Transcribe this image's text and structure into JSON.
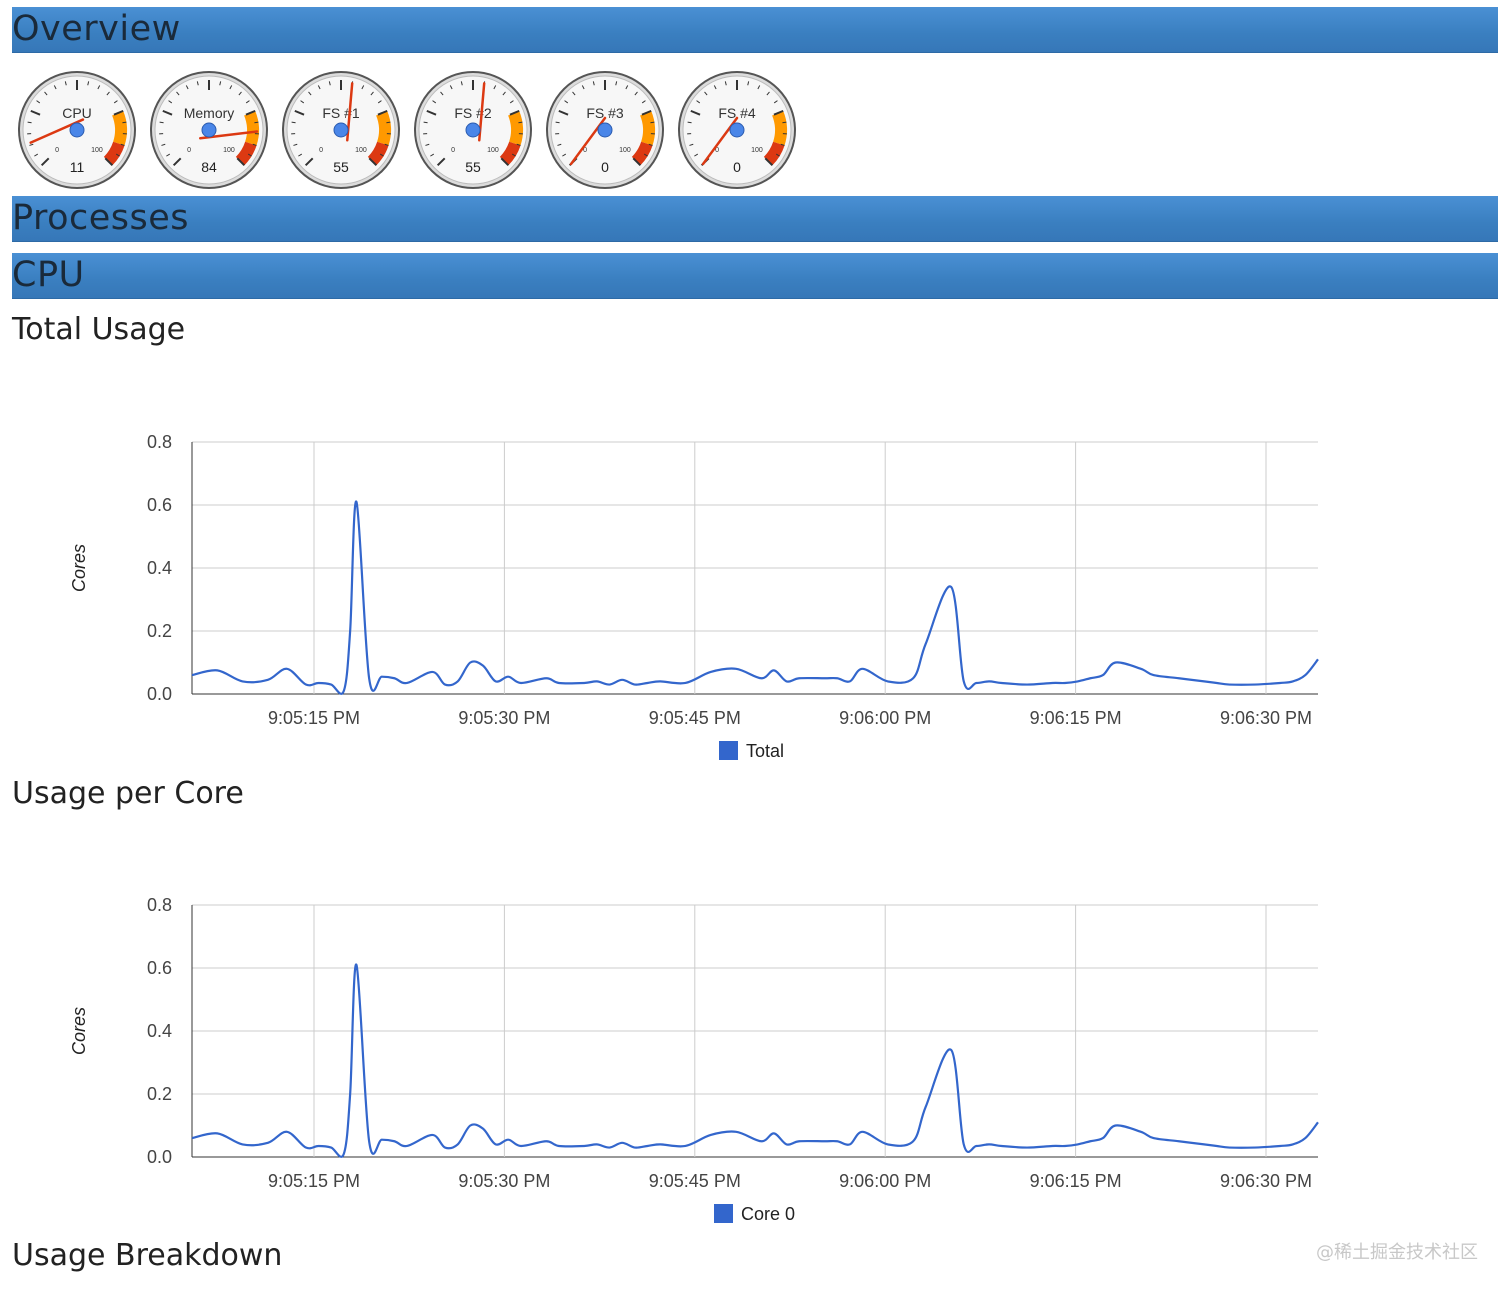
{
  "sections": {
    "overview": "Overview",
    "processes": "Processes",
    "cpu": "CPU"
  },
  "headings": {
    "total_usage": "Total Usage",
    "usage_per_core": "Usage per Core",
    "usage_breakdown": "Usage Breakdown"
  },
  "gauges": [
    {
      "label": "CPU",
      "value": 11
    },
    {
      "label": "Memory",
      "value": 84
    },
    {
      "label": "FS #1",
      "value": 55
    },
    {
      "label": "FS #2",
      "value": 55
    },
    {
      "label": "FS #3",
      "value": 0
    },
    {
      "label": "FS #4",
      "value": 0
    }
  ],
  "gauge_scale": {
    "min": "0",
    "max": "100"
  },
  "colors": {
    "line": "#3366cc",
    "bar": "#3a7fc0",
    "gauge_yellow": "#ff9900",
    "gauge_red": "#dc3912"
  },
  "watermark": "@稀土掘金技术社区",
  "chart_data": [
    {
      "type": "line",
      "ylabel": "Cores",
      "ylim": [
        0,
        0.8
      ],
      "yticks": [
        "0.8",
        "0.6",
        "0.4",
        "0.2",
        "0.0"
      ],
      "xticks": [
        "9:05:15 PM",
        "9:05:30 PM",
        "9:05:45 PM",
        "9:06:00 PM",
        "9:06:15 PM",
        "9:06:30 PM"
      ],
      "series": [
        {
          "name": "Total",
          "color": "#3366cc",
          "x": [
            0,
            2,
            4,
            6,
            7.5,
            9,
            10,
            11,
            12,
            12.5,
            13,
            14,
            15,
            16,
            17,
            19,
            20,
            21,
            22,
            23,
            24,
            25,
            26,
            28,
            29,
            31,
            32,
            33,
            34,
            35,
            36,
            37,
            39,
            41,
            43,
            45,
            46,
            47,
            48,
            50,
            51,
            52,
            53,
            55,
            57,
            58,
            60,
            61,
            62,
            63,
            64,
            66,
            68,
            69,
            70,
            71,
            72,
            73,
            75,
            76,
            78,
            80,
            81,
            82,
            84,
            86,
            87,
            88,
            89
          ],
          "y": [
            0.06,
            0.075,
            0.04,
            0.045,
            0.08,
            0.03,
            0.035,
            0.03,
            0.01,
            0.2,
            0.61,
            0.05,
            0.055,
            0.05,
            0.035,
            0.07,
            0.03,
            0.04,
            0.1,
            0.09,
            0.04,
            0.055,
            0.035,
            0.05,
            0.035,
            0.035,
            0.04,
            0.03,
            0.045,
            0.03,
            0.035,
            0.04,
            0.035,
            0.07,
            0.08,
            0.05,
            0.075,
            0.04,
            0.05,
            0.05,
            0.05,
            0.04,
            0.08,
            0.04,
            0.05,
            0.16,
            0.34,
            0.04,
            0.035,
            0.04,
            0.035,
            0.03,
            0.035,
            0.035,
            0.04,
            0.05,
            0.06,
            0.1,
            0.08,
            0.06,
            0.05,
            0.04,
            0.035,
            0.03,
            0.03,
            0.035,
            0.04,
            0.06,
            0.11
          ]
        }
      ]
    },
    {
      "type": "line",
      "ylabel": "Cores",
      "ylim": [
        0,
        0.8
      ],
      "yticks": [
        "0.8",
        "0.6",
        "0.4",
        "0.2",
        "0.0"
      ],
      "xticks": [
        "9:05:15 PM",
        "9:05:30 PM",
        "9:05:45 PM",
        "9:06:00 PM",
        "9:06:15 PM",
        "9:06:30 PM"
      ],
      "series": [
        {
          "name": "Core 0",
          "color": "#3366cc",
          "x": [
            0,
            2,
            4,
            6,
            7.5,
            9,
            10,
            11,
            12,
            12.5,
            13,
            14,
            15,
            16,
            17,
            19,
            20,
            21,
            22,
            23,
            24,
            25,
            26,
            28,
            29,
            31,
            32,
            33,
            34,
            35,
            36,
            37,
            39,
            41,
            43,
            45,
            46,
            47,
            48,
            50,
            51,
            52,
            53,
            55,
            57,
            58,
            60,
            61,
            62,
            63,
            64,
            66,
            68,
            69,
            70,
            71,
            72,
            73,
            75,
            76,
            78,
            80,
            81,
            82,
            84,
            86,
            87,
            88,
            89
          ],
          "y": [
            0.06,
            0.075,
            0.04,
            0.045,
            0.08,
            0.03,
            0.035,
            0.03,
            0.01,
            0.2,
            0.61,
            0.05,
            0.055,
            0.05,
            0.035,
            0.07,
            0.03,
            0.04,
            0.1,
            0.09,
            0.04,
            0.055,
            0.035,
            0.05,
            0.035,
            0.035,
            0.04,
            0.03,
            0.045,
            0.03,
            0.035,
            0.04,
            0.035,
            0.07,
            0.08,
            0.05,
            0.075,
            0.04,
            0.05,
            0.05,
            0.05,
            0.04,
            0.08,
            0.04,
            0.05,
            0.16,
            0.34,
            0.04,
            0.035,
            0.04,
            0.035,
            0.03,
            0.035,
            0.035,
            0.04,
            0.05,
            0.06,
            0.1,
            0.08,
            0.06,
            0.05,
            0.04,
            0.035,
            0.03,
            0.03,
            0.035,
            0.04,
            0.06,
            0.11
          ]
        }
      ]
    }
  ]
}
